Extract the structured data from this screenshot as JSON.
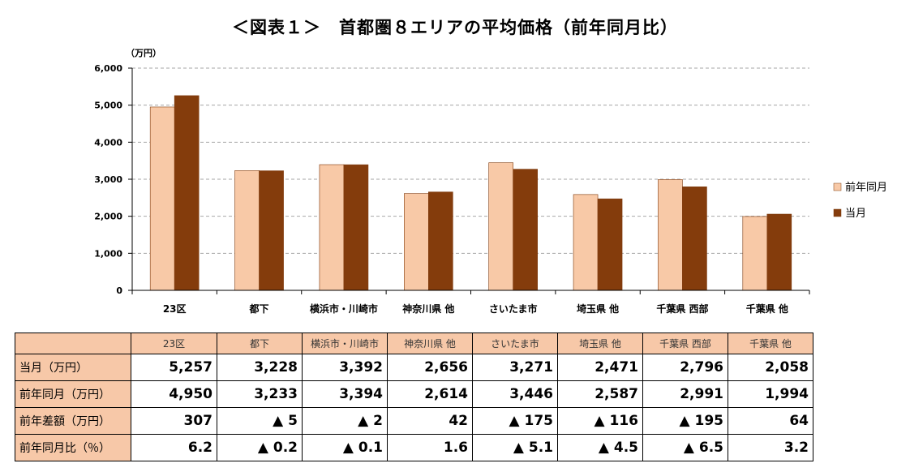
{
  "chart_data": {
    "type": "bar",
    "title": "＜図表１＞　首都圏８エリアの平均価格（前年同月比）",
    "y_unit": "（万円）",
    "categories": [
      "23区",
      "都下",
      "横浜市・川崎市",
      "神奈川県 他",
      "さいたま市",
      "埼玉県 他",
      "千葉県 西部",
      "千葉県 他"
    ],
    "series": [
      {
        "name": "前年同月",
        "color": "#f8c9a7",
        "values": [
          4950,
          3233,
          3394,
          2614,
          3446,
          2587,
          2991,
          1994
        ]
      },
      {
        "name": "当月",
        "color": "#843c0c",
        "values": [
          5257,
          3228,
          3392,
          2656,
          3271,
          2471,
          2796,
          2058
        ]
      }
    ],
    "ylim": [
      0,
      6000
    ],
    "yticks": [
      "0",
      "1,000",
      "2,000",
      "3,000",
      "4,000",
      "5,000",
      "6,000"
    ],
    "grid": true,
    "legend_position": "right"
  },
  "table": {
    "header": [
      "23区",
      "都下",
      "横浜市・川崎市",
      "神奈川県 他",
      "さいたま市",
      "埼玉県 他",
      "千葉県 西部",
      "千葉県 他"
    ],
    "rows": [
      {
        "label": "当月（万円）",
        "cells": [
          "5,257",
          "3,228",
          "3,392",
          "2,656",
          "3,271",
          "2,471",
          "2,796",
          "2,058"
        ]
      },
      {
        "label": "前年同月（万円）",
        "cells": [
          "4,950",
          "3,233",
          "3,394",
          "2,614",
          "3,446",
          "2,587",
          "2,991",
          "1,994"
        ]
      },
      {
        "label": "前年差額（万円）",
        "cells": [
          "307",
          "▲ 5",
          "▲ 2",
          "42",
          "▲ 175",
          "▲ 116",
          "▲ 195",
          "64"
        ]
      },
      {
        "label": "前年同月比（％）",
        "cells": [
          "6.2",
          "▲ 0.2",
          "▲ 0.1",
          "1.6",
          "▲ 5.1",
          "▲ 4.5",
          "▲ 6.5",
          "3.2"
        ]
      }
    ]
  }
}
